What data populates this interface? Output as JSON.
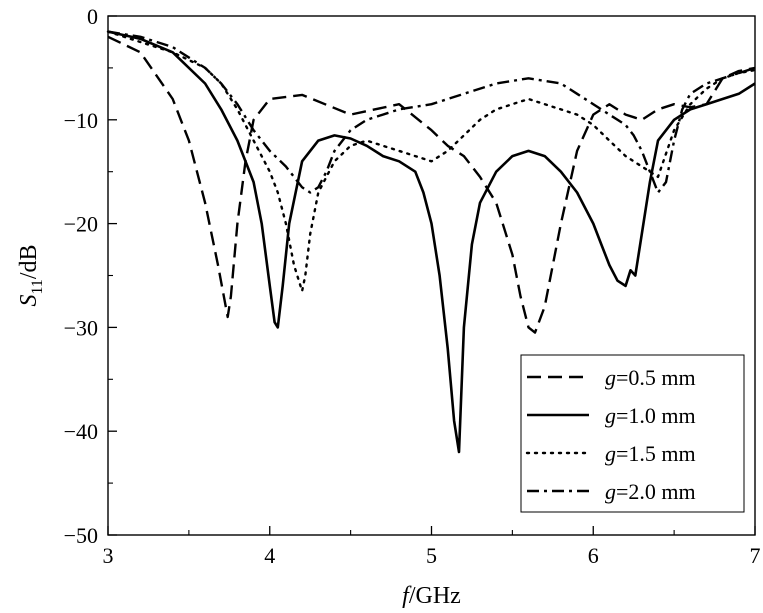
{
  "chart_data": {
    "type": "line",
    "title": "",
    "xlabel": "f/GHz",
    "xlabel_parts": {
      "var": "f",
      "unit": "/GHz"
    },
    "ylabel": "S11/dB",
    "ylabel_parts": {
      "var": "S",
      "sub": "11",
      "unit": "/dB"
    },
    "xlim": [
      3,
      7
    ],
    "ylim": [
      -50,
      0
    ],
    "xticks": [
      3,
      4,
      5,
      6,
      7
    ],
    "xtick_labels": [
      "3",
      "4",
      "5",
      "6",
      "7"
    ],
    "yticks": [
      0,
      -10,
      -20,
      -30,
      -40,
      -50
    ],
    "ytick_labels": [
      "0",
      "−10",
      "−20",
      "−30",
      "−40",
      "−50"
    ],
    "grid": false,
    "legend_position": "bottom-right",
    "series": [
      {
        "name": "g=0.5 mm",
        "name_parts": {
          "var": "g",
          "rest": "=0.5 mm"
        },
        "dash": "dashed",
        "x": [
          3.0,
          3.2,
          3.4,
          3.5,
          3.6,
          3.68,
          3.74,
          3.76,
          3.8,
          3.85,
          3.9,
          4.0,
          4.2,
          4.5,
          4.8,
          5.0,
          5.1,
          5.2,
          5.3,
          5.4,
          5.5,
          5.55,
          5.6,
          5.64,
          5.7,
          5.8,
          5.9,
          6.0,
          6.1,
          6.2,
          6.3,
          6.4,
          6.5,
          6.6,
          6.7,
          6.8,
          6.9,
          7.0
        ],
        "y": [
          -2.0,
          -3.5,
          -8,
          -12,
          -18,
          -24,
          -29,
          -27,
          -20,
          -14,
          -10,
          -8,
          -7.6,
          -9.5,
          -8.5,
          -11,
          -12.5,
          -13.5,
          -15.5,
          -18,
          -23,
          -27,
          -30,
          -30.5,
          -28,
          -20,
          -13,
          -9.5,
          -8.5,
          -9.5,
          -10,
          -9,
          -8.5,
          -8.8,
          -8.5,
          -6,
          -5.3,
          -5.0
        ]
      },
      {
        "name": "g=1.0 mm",
        "name_parts": {
          "var": "g",
          "rest": "=1.0 mm"
        },
        "dash": "solid",
        "x": [
          3.0,
          3.2,
          3.4,
          3.6,
          3.7,
          3.8,
          3.9,
          3.95,
          4.0,
          4.03,
          4.05,
          4.08,
          4.12,
          4.2,
          4.3,
          4.4,
          4.5,
          4.6,
          4.7,
          4.8,
          4.9,
          4.95,
          5.0,
          5.05,
          5.1,
          5.14,
          5.17,
          5.2,
          5.25,
          5.3,
          5.4,
          5.5,
          5.6,
          5.7,
          5.8,
          5.9,
          6.0,
          6.05,
          6.1,
          6.15,
          6.2,
          6.23,
          6.26,
          6.3,
          6.35,
          6.4,
          6.5,
          6.6,
          6.7,
          6.8,
          6.9,
          7.0
        ],
        "y": [
          -1.5,
          -2.2,
          -3.5,
          -6.5,
          -9,
          -12,
          -16,
          -20,
          -26,
          -29.5,
          -30,
          -26,
          -20,
          -14,
          -12,
          -11.5,
          -11.8,
          -12.5,
          -13.5,
          -14,
          -15,
          -17,
          -20,
          -25,
          -32,
          -39,
          -42,
          -30,
          -22,
          -18,
          -15,
          -13.5,
          -13,
          -13.5,
          -15,
          -17,
          -20,
          -22,
          -24,
          -25.5,
          -26,
          -24.5,
          -25,
          -21,
          -16,
          -12,
          -10,
          -9,
          -8.5,
          -8,
          -7.5,
          -6.5
        ]
      },
      {
        "name": "g=1.5 mm",
        "name_parts": {
          "var": "g",
          "rest": "=1.5 mm"
        },
        "dash": "dotted",
        "x": [
          3.0,
          3.2,
          3.4,
          3.6,
          3.7,
          3.8,
          3.9,
          4.0,
          4.05,
          4.1,
          4.15,
          4.2,
          4.22,
          4.25,
          4.3,
          4.4,
          4.5,
          4.6,
          4.7,
          4.8,
          4.9,
          5.0,
          5.1,
          5.2,
          5.3,
          5.4,
          5.5,
          5.6,
          5.7,
          5.8,
          5.9,
          6.0,
          6.1,
          6.2,
          6.3,
          6.4,
          6.5,
          6.6,
          6.7,
          6.8,
          6.9,
          7.0
        ],
        "y": [
          -1.5,
          -2.5,
          -3.5,
          -5,
          -6.5,
          -9,
          -12,
          -15,
          -17,
          -20,
          -24,
          -26.5,
          -25,
          -21,
          -17,
          -14,
          -12.5,
          -12,
          -12.5,
          -13,
          -13.5,
          -14,
          -13,
          -11.5,
          -10,
          -9,
          -8.5,
          -8,
          -8.5,
          -9,
          -9.5,
          -10.5,
          -12,
          -13.5,
          -14.5,
          -15.5,
          -11,
          -8.5,
          -7,
          -6,
          -5.5,
          -5.2
        ]
      },
      {
        "name": "g=2.0 mm",
        "name_parts": {
          "var": "g",
          "rest": "=2.0 mm"
        },
        "dash": "dash-dot",
        "x": [
          3.0,
          3.2,
          3.4,
          3.6,
          3.7,
          3.8,
          3.9,
          4.0,
          4.1,
          4.2,
          4.25,
          4.3,
          4.35,
          4.4,
          4.5,
          4.6,
          4.8,
          5.0,
          5.2,
          5.4,
          5.6,
          5.8,
          5.9,
          6.0,
          6.1,
          6.15,
          6.2,
          6.25,
          6.3,
          6.35,
          6.4,
          6.45,
          6.5,
          6.55,
          6.6,
          6.7,
          6.8,
          6.9,
          7.0
        ],
        "y": [
          -1.5,
          -2.0,
          -3.0,
          -5.0,
          -6.5,
          -8.5,
          -11,
          -13,
          -14.5,
          -16.5,
          -17,
          -16.5,
          -15,
          -13,
          -11,
          -10,
          -9,
          -8.5,
          -7.5,
          -6.5,
          -6,
          -6.5,
          -7.5,
          -8.5,
          -9.5,
          -10,
          -10.5,
          -11.5,
          -13,
          -15,
          -17,
          -16,
          -12,
          -9,
          -7.5,
          -6.5,
          -6,
          -5.5,
          -5
        ]
      }
    ]
  }
}
